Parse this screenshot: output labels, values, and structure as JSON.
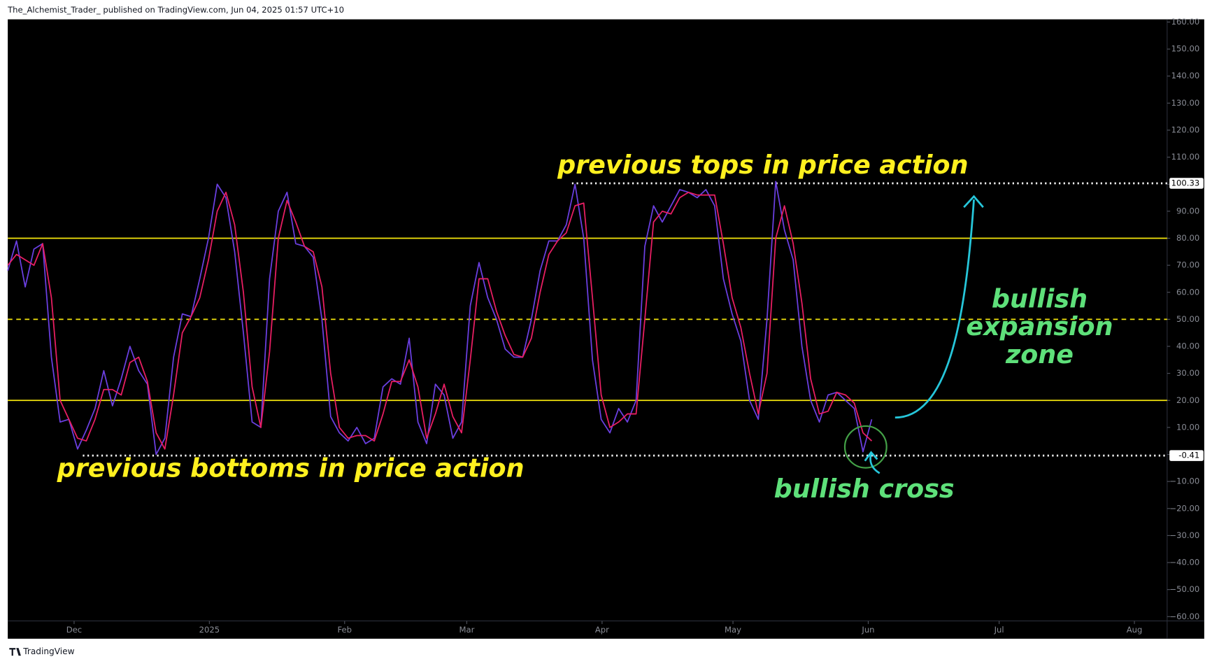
{
  "header": {
    "publisher": "The_Alchemist_Trader_ published on TradingView.com, Jun 04, 2025 01:57 UTC+10",
    "brand": "TradingView"
  },
  "chart_data": {
    "type": "line",
    "x": [
      0,
      2,
      4,
      6,
      8,
      10,
      12,
      14,
      16,
      18,
      20,
      22,
      24,
      26,
      28,
      30,
      32,
      34,
      36,
      38,
      40,
      42,
      44,
      46,
      48,
      50,
      52,
      54,
      56,
      58,
      60,
      62,
      64,
      66,
      68,
      70,
      72,
      74,
      76,
      78,
      80,
      82,
      84,
      86,
      88,
      90,
      92,
      94,
      96,
      98,
      100,
      102,
      104,
      106,
      108,
      110,
      112,
      114,
      116,
      118,
      120,
      122,
      124,
      126,
      128,
      130,
      132,
      134,
      136,
      138,
      140,
      142,
      144,
      146,
      148,
      150,
      152,
      154,
      156,
      158,
      160,
      162,
      164,
      166,
      168,
      170,
      172,
      174,
      176,
      178,
      180,
      182,
      184,
      186,
      188,
      190,
      192,
      194,
      196,
      198
    ],
    "xlim": [
      0,
      265.7
    ],
    "xticks": [
      {
        "value": 15.2,
        "label": "Dec"
      },
      {
        "value": 46.2,
        "label": "2025"
      },
      {
        "value": 77.2,
        "label": "Feb"
      },
      {
        "value": 105.2,
        "label": "Mar"
      },
      {
        "value": 136.2,
        "label": "Apr"
      },
      {
        "value": 166.2,
        "label": "May"
      },
      {
        "value": 197.2,
        "label": "Jun"
      },
      {
        "value": 227.2,
        "label": "Jul"
      },
      {
        "value": 258.2,
        "label": "Aug"
      }
    ],
    "ylim": [
      -61.6,
      161.0
    ],
    "yticks": [
      {
        "value": 160,
        "label": "160.00"
      },
      {
        "value": 150,
        "label": "150.00"
      },
      {
        "value": 140,
        "label": "140.00"
      },
      {
        "value": 130,
        "label": "130.00"
      },
      {
        "value": 120,
        "label": "120.00"
      },
      {
        "value": 110,
        "label": "110.00"
      },
      {
        "value": 100,
        "label": "100.00"
      },
      {
        "value": 90,
        "label": "90.00"
      },
      {
        "value": 80,
        "label": "80.00"
      },
      {
        "value": 70,
        "label": "70.00"
      },
      {
        "value": 60,
        "label": "60.00"
      },
      {
        "value": 50,
        "label": "50.00"
      },
      {
        "value": 40,
        "label": "40.00"
      },
      {
        "value": 30,
        "label": "30.00"
      },
      {
        "value": 20,
        "label": "20.00"
      },
      {
        "value": 10,
        "label": "10.00"
      },
      {
        "value": 0,
        "label": "0.00"
      },
      {
        "value": -10,
        "label": "−10.00"
      },
      {
        "value": -20,
        "label": "−20.00"
      },
      {
        "value": -30,
        "label": "−30.00"
      },
      {
        "value": -40,
        "label": "−40.00"
      },
      {
        "value": -50,
        "label": "−50.00"
      },
      {
        "value": -60,
        "label": "−60.00"
      }
    ],
    "series": [
      {
        "color": "#6a3fe0",
        "values": [
          68,
          79,
          62,
          76,
          78,
          36,
          12,
          13,
          2,
          9,
          17,
          31,
          18,
          28,
          40,
          31,
          26,
          0,
          6,
          36,
          52,
          51,
          65,
          80,
          100,
          95,
          75,
          45,
          12,
          10,
          65,
          90,
          97,
          78,
          77,
          73,
          50,
          14,
          8,
          5,
          10,
          4,
          6,
          25,
          28,
          26,
          43,
          12,
          4,
          26,
          22,
          6,
          12,
          55,
          71,
          58,
          50,
          39,
          36,
          36,
          50,
          68,
          79,
          79,
          85,
          100,
          80,
          35,
          13,
          8,
          17,
          12,
          20,
          77,
          92,
          86,
          92,
          98,
          97,
          95,
          98,
          92,
          65,
          52,
          42,
          20,
          13,
          50,
          101,
          83,
          72,
          40,
          20,
          12,
          22,
          23,
          20,
          17,
          1,
          13
        ]
      },
      {
        "color": "#e91e63",
        "values": [
          70,
          74,
          72,
          70,
          78,
          58,
          20,
          13,
          6,
          5,
          13,
          24,
          24,
          22,
          34,
          36,
          27,
          8,
          2,
          22,
          45,
          51,
          58,
          72,
          90,
          97,
          85,
          60,
          25,
          10,
          38,
          80,
          94,
          86,
          77,
          75,
          62,
          30,
          10,
          6,
          7,
          7,
          5,
          15,
          27,
          27,
          35,
          25,
          6,
          15,
          26,
          14,
          8,
          35,
          65,
          65,
          53,
          44,
          37,
          36,
          43,
          60,
          74,
          79,
          82,
          92,
          93,
          58,
          22,
          10,
          12,
          15,
          15,
          50,
          86,
          90,
          89,
          95,
          97,
          96,
          96,
          96,
          78,
          58,
          47,
          30,
          15,
          30,
          80,
          92,
          78,
          56,
          28,
          15,
          16,
          23,
          22,
          19,
          8,
          5
        ]
      }
    ],
    "levels": [
      {
        "value": 80,
        "color": "#f5e60c",
        "style": "solid"
      },
      {
        "value": 50,
        "color": "#f5e60c",
        "style": "dashed"
      },
      {
        "value": 20,
        "color": "#f5e60c",
        "style": "solid"
      }
    ],
    "price_lines": [
      {
        "value": 100.33,
        "from_x": 129.3
      },
      {
        "value": -0.41,
        "from_x": 17.2
      }
    ],
    "annotations": [
      {
        "lines": [
          "previous tops in price action"
        ],
        "color": "#fff01f"
      },
      {
        "lines": [
          "previous bottoms in price action"
        ],
        "color": "#fff01f"
      },
      {
        "lines": [
          "bullish",
          "expansion",
          "zone"
        ],
        "color": "#5ee07a"
      },
      {
        "lines": [
          "bullish cross"
        ],
        "color": "#5ee07a"
      }
    ]
  }
}
